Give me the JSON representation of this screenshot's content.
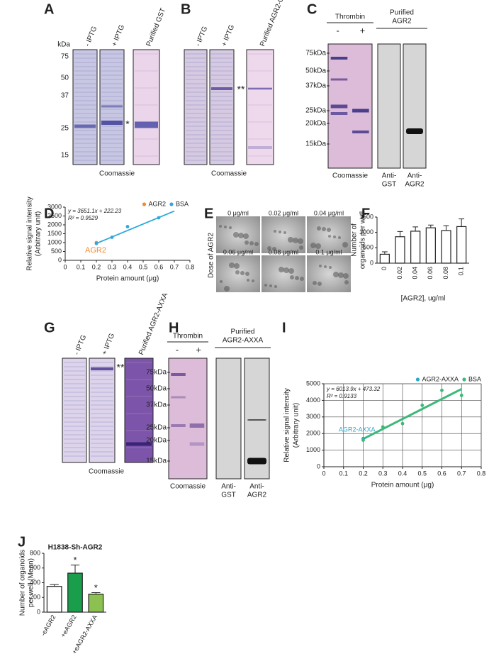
{
  "panels": {
    "A": {
      "label": "A",
      "lanes": [
        "- IPTG",
        "+ IPTG",
        "Purified GST"
      ],
      "size_unit": "kDa",
      "sizes": [
        "75",
        "50",
        "37",
        "25",
        "15"
      ],
      "marker": "*",
      "stain": "Coomassie"
    },
    "B": {
      "label": "B",
      "lanes": [
        "- IPTG",
        "+ IPTG",
        "Purified AGR2-GST"
      ],
      "marker": "**",
      "stain": "Coomassie"
    },
    "C": {
      "label": "C",
      "treatment": "Thrombin",
      "conditions": [
        "-",
        "+"
      ],
      "purified": [
        "Purified",
        "AGR2"
      ],
      "sizes": [
        "75kDa",
        "50kDa",
        "37kDa",
        "25kDa",
        "20kDa",
        "15kDa"
      ],
      "stain": "Coomassie",
      "antibodies": [
        [
          "Anti-",
          "GST"
        ],
        [
          "Anti-",
          "AGR2"
        ]
      ]
    },
    "E": {
      "label": "E",
      "axis": "Dose of AGR2",
      "doses": [
        "0 μg/ml",
        "0.02 μg/ml",
        "0.04 μg/ml",
        "0.06 μg/ml",
        "0.08 μg/ml",
        "0.1 μg/ml"
      ]
    },
    "G": {
      "label": "G",
      "lanes": [
        "- IPTG",
        "+ IPTG",
        "Purified AGR2-AXXA"
      ],
      "marker": "**",
      "stain": "Coomassie"
    },
    "H": {
      "label": "H",
      "treatment": "Thrombin",
      "conditions": [
        "-",
        "+"
      ],
      "purified": [
        "Purified",
        "AGR2-AXXA"
      ],
      "sizes": [
        "75kDa",
        "50kDa",
        "37kDa",
        "25kDa",
        "20kDa",
        "15kDa"
      ],
      "stain": "Coomassie",
      "antibodies": [
        [
          "Anti-",
          "GST"
        ],
        [
          "Anti-",
          "AGR2"
        ]
      ]
    }
  },
  "chart_data": [
    {
      "type": "scatter",
      "label": "D",
      "xlabel": "Protein amount (μg)",
      "ylabel": [
        "Relative signal intensity",
        "(Arbitrary unit)"
      ],
      "xlim": [
        0,
        0.8
      ],
      "xticks": [
        0,
        0.1,
        0.2,
        0.3,
        0.4,
        0.5,
        0.6,
        0.7,
        0.8
      ],
      "ylim": [
        0,
        3000
      ],
      "yticks": [
        0,
        500,
        1000,
        1500,
        2000,
        2500,
        3000
      ],
      "grid": false,
      "series": [
        {
          "name": "AGR2",
          "color": "#f08a30",
          "x": [
            0.2
          ],
          "values": [
            1000
          ]
        },
        {
          "name": "BSA",
          "color": "#3aa3d9",
          "x": [
            0.2,
            0.3,
            0.4,
            0.6
          ],
          "values": [
            950,
            1300,
            1900,
            2400
          ]
        }
      ],
      "trendline": {
        "color": "#29a9d9",
        "x": [
          0.2,
          0.7
        ],
        "values": [
          952,
          2778
        ]
      },
      "equation": [
        "y = 3651.1x + 222.23",
        "R² = 0.9529"
      ],
      "annotation": "AGR2",
      "annotation_color": "#f08a30",
      "legend": "top-right"
    },
    {
      "type": "bar",
      "label": "F",
      "xlabel": "[AGR2], ug/ml",
      "ylabel": [
        "Number of",
        "organoids per well"
      ],
      "categories": [
        "0",
        "0.02",
        "0.04",
        "0.06",
        "0.08",
        "0.1"
      ],
      "values": [
        290,
        860,
        1040,
        1150,
        1060,
        1190
      ],
      "errors": [
        80,
        170,
        140,
        90,
        160,
        250
      ],
      "colors": [
        "#ffffff",
        "#ffffff",
        "#ffffff",
        "#ffffff",
        "#ffffff",
        "#ffffff"
      ],
      "ylim": [
        0,
        1500
      ],
      "yticks": [
        0,
        500,
        1000,
        1500
      ],
      "grid": false
    },
    {
      "type": "scatter",
      "label": "I",
      "xlabel": "Protein amount (μg)",
      "ylabel": [
        "Relative signal intensity",
        "(Arbitrary unit)"
      ],
      "xlim": [
        0,
        0.8
      ],
      "xticks": [
        0,
        0.1,
        0.2,
        0.3,
        0.4,
        0.5,
        0.6,
        0.7,
        0.8
      ],
      "ylim": [
        0,
        5000
      ],
      "yticks": [
        0,
        1000,
        2000,
        3000,
        4000,
        5000
      ],
      "grid": true,
      "series": [
        {
          "name": "AGR2-AXXA",
          "color": "#2aa7c9",
          "x": [
            0.2
          ],
          "values": [
            1700
          ]
        },
        {
          "name": "BSA",
          "color": "#3cb878",
          "x": [
            0.2,
            0.3,
            0.4,
            0.5,
            0.6,
            0.7
          ],
          "values": [
            1600,
            2400,
            2600,
            3700,
            4600,
            4300
          ]
        }
      ],
      "trendline": {
        "color": "#3cb878",
        "x": [
          0.2,
          0.7
        ],
        "values": [
          1676,
          4683
        ]
      },
      "equation": [
        "y = 6013.9x + 473.32",
        "R² = 0.9133"
      ],
      "annotation": "AGR2-AXXA",
      "annotation_color": "#2aa7c9",
      "legend": "top-right"
    },
    {
      "type": "bar",
      "label": "J",
      "title": "H1838-Sh-AGR2",
      "ylabel": [
        "Number of organoids",
        "per well (Mean)"
      ],
      "categories": [
        "-eAGR2",
        "+eAGR2",
        "+eAGR2-AXXA"
      ],
      "values": [
        350,
        530,
        245
      ],
      "errors": [
        25,
        110,
        20
      ],
      "colors": [
        "#ffffff",
        "#1a9e4b",
        "#8cc152"
      ],
      "significance": [
        null,
        "*",
        "*"
      ],
      "ylim": [
        0,
        800
      ],
      "yticks": [
        0,
        200,
        400,
        600,
        800
      ],
      "grid": false
    }
  ]
}
